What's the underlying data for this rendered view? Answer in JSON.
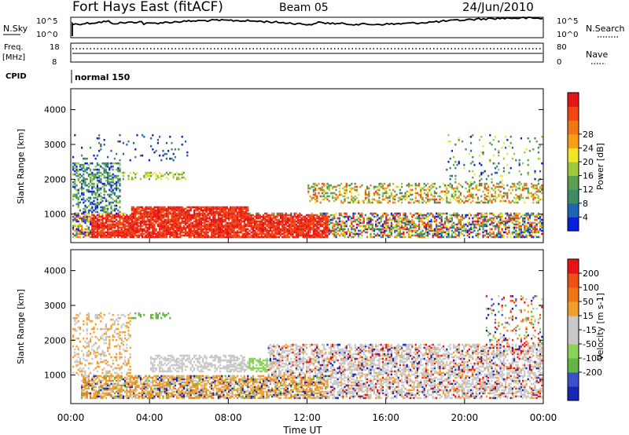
{
  "header": {
    "title": "Fort Hays East (fitACF)",
    "beam": "Beam 05",
    "date": "24/Jun/2010"
  },
  "summary_panels": {
    "nsky_label": "N.Sky",
    "nsky_ticks": [
      "10^5",
      "10^0"
    ],
    "nsearch_label": "N.Search",
    "nsearch_ticks": [
      "10^5",
      "10^0"
    ],
    "freq_label_line1": "Freq.",
    "freq_label_line2": "[MHz]",
    "freq_ticks": [
      "18",
      "8"
    ],
    "nave_label": "Nave",
    "nave_ticks": [
      "80",
      "0"
    ],
    "cpid_label": "CPID",
    "cpid_text": "normal 150"
  },
  "chart_data": [
    {
      "type": "heatmap",
      "title": "",
      "xlabel": "",
      "ylabel": "Slant Range [km]",
      "ylim": [
        180,
        4600
      ],
      "xlim": [
        0,
        24
      ],
      "yticks": [
        "1000",
        "2000",
        "3000",
        "4000"
      ],
      "colorbar": {
        "label": "Power [dB]",
        "ticks": [
          "4",
          "8",
          "12",
          "16",
          "20",
          "24",
          "28"
        ],
        "colors": [
          "#0a1ee0",
          "#1e64b4",
          "#3c8c64",
          "#5aa050",
          "#a0c83c",
          "#f0e628",
          "#f5a014",
          "#f07814",
          "#f04614",
          "#e61414"
        ]
      },
      "regions": [
        {
          "hours": [
            0,
            1.5
          ],
          "ranges": [
            500,
            3300
          ],
          "level": "mixed-weak"
        },
        {
          "hours": [
            1.5,
            9
          ],
          "ranges": [
            300,
            1200
          ],
          "level": "strong"
        },
        {
          "hours": [
            9,
            12
          ],
          "ranges": [
            300,
            1000
          ],
          "level": "strong"
        },
        {
          "hours": [
            12,
            24
          ],
          "ranges": [
            300,
            1900
          ],
          "level": "mixed"
        }
      ]
    },
    {
      "type": "heatmap",
      "title": "",
      "xlabel": "Time UT",
      "ylabel": "Slant Range [km]",
      "ylim": [
        180,
        4600
      ],
      "xlim": [
        0,
        24
      ],
      "xticks": [
        "00:00",
        "04:00",
        "08:00",
        "12:00",
        "16:00",
        "20:00",
        "00:00"
      ],
      "yticks": [
        "1000",
        "2000",
        "3000",
        "4000"
      ],
      "colorbar": {
        "label": "Velocity [m s-1]",
        "ticks": [
          "200",
          "100",
          "50",
          "15",
          "-15",
          "-50",
          "-100",
          "-200"
        ],
        "colors": [
          "#1428b4",
          "#3c50c8",
          "#64b446",
          "#8cd25a",
          "#c8c8c8",
          "#c8c8c8",
          "#f0a028",
          "#f07814",
          "#f05014",
          "#e61414"
        ]
      },
      "regions": [
        {
          "hours": [
            0,
            6
          ],
          "ranges": [
            300,
            1000
          ],
          "level": "negative-slow"
        },
        {
          "hours": [
            6,
            12
          ],
          "ranges": [
            300,
            900
          ],
          "level": "mixed"
        },
        {
          "hours": [
            12,
            24
          ],
          "ranges": [
            300,
            1900
          ],
          "level": "near-zero"
        }
      ]
    }
  ]
}
